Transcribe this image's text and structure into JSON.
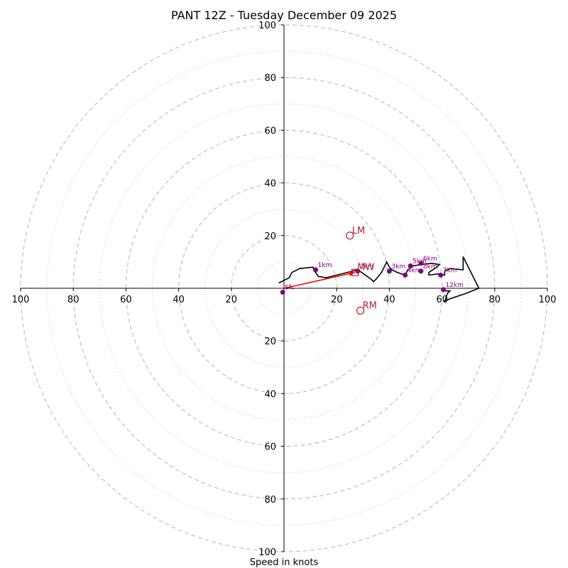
{
  "chart_data": {
    "type": "hodograph",
    "title": "PANT 12Z - Tuesday December 09 2025",
    "xlabel": "Speed in knots",
    "units": "knots",
    "range": [
      -100,
      100
    ],
    "ring_major": [
      20,
      40,
      60,
      80,
      100
    ],
    "ring_minor": [
      10,
      30,
      50,
      70,
      90
    ],
    "tick_labels_x_left": [
      "100",
      "80",
      "60",
      "40",
      "20"
    ],
    "tick_labels_x_right": [
      "20",
      "40",
      "60",
      "80",
      "100"
    ],
    "tick_labels_y_up": [
      "20",
      "40",
      "60",
      "80",
      "100"
    ],
    "tick_labels_y_down": [
      "20",
      "40",
      "60",
      "80",
      "100"
    ],
    "wind_trace": [
      [
        -2,
        2
      ],
      [
        2,
        4
      ],
      [
        3,
        6
      ],
      [
        6,
        7.5
      ],
      [
        11,
        8
      ],
      [
        12,
        6
      ],
      [
        13,
        4.5
      ],
      [
        16,
        4
      ],
      [
        22,
        5.5
      ],
      [
        28,
        7
      ],
      [
        33,
        3.5
      ],
      [
        34,
        2.5
      ],
      [
        35,
        3.5
      ],
      [
        37,
        6
      ],
      [
        38,
        8
      ],
      [
        39,
        10
      ],
      [
        40,
        8
      ],
      [
        41,
        7
      ],
      [
        43,
        6
      ],
      [
        46,
        5
      ],
      [
        47,
        7
      ],
      [
        49,
        8.5
      ],
      [
        52,
        9
      ],
      [
        56,
        9.5
      ],
      [
        59,
        9
      ],
      [
        58,
        8
      ],
      [
        55,
        6
      ],
      [
        55,
        5
      ],
      [
        59,
        5.5
      ],
      [
        60,
        5.2
      ],
      [
        61,
        5
      ],
      [
        61,
        6.5
      ],
      [
        63,
        7.5
      ],
      [
        68,
        7
      ],
      [
        68,
        12
      ],
      [
        74,
        0
      ],
      [
        69,
        -2
      ],
      [
        63,
        -4
      ],
      [
        61,
        -5
      ],
      [
        62,
        -2
      ],
      [
        63,
        -1
      ],
      [
        60,
        -1
      ]
    ],
    "height_markers": [
      {
        "label": "Sfc",
        "u": -0.5,
        "v": -1.5
      },
      {
        "label": "1km",
        "u": 12,
        "v": 7
      },
      {
        "label": "2km",
        "u": 28,
        "v": 6.5
      },
      {
        "label": "3km",
        "u": 40,
        "v": 6.5
      },
      {
        "label": "4km",
        "u": 46,
        "v": 5
      },
      {
        "label": "5km",
        "u": 48,
        "v": 8.5
      },
      {
        "label": "6km",
        "u": 52,
        "v": 9.5
      },
      {
        "label": "7km",
        "u": 59.5,
        "v": 5
      },
      {
        "label": "8km",
        "u": 52,
        "v": 6.5
      },
      {
        "label": "12km",
        "u": 60.5,
        "v": -0.5
      }
    ],
    "storm_motions": [
      {
        "label": "LM",
        "u": 25,
        "v": 20,
        "marker": "circle"
      },
      {
        "label": "RM",
        "u": 29,
        "v": -8.5,
        "marker": "circle"
      },
      {
        "label": "MW",
        "u": 27,
        "v": 6,
        "marker": "square"
      }
    ],
    "shear_arrow": {
      "from": [
        0,
        0
      ],
      "to": [
        27,
        6
      ]
    }
  },
  "colors": {
    "trace": "#000000",
    "height_marker": "#800080",
    "storm_motion": "#b22222",
    "shear_arrow": "#ff0000",
    "ring_major": "#bbbbbb",
    "ring_minor": "#cccccc",
    "axis": "#000000"
  }
}
